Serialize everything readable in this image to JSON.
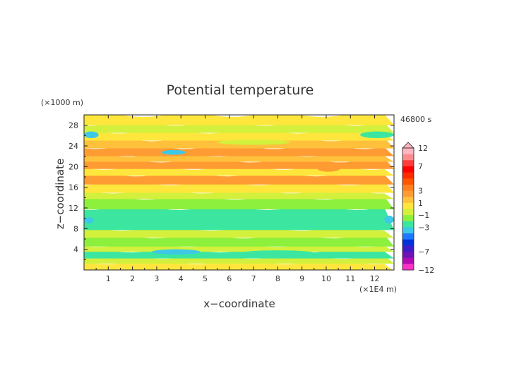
{
  "chart_data": {
    "type": "heatmap",
    "title": "Potential temperature",
    "xlabel": "x−coordinate",
    "ylabel": "z−coordinate",
    "x_unit": "(×1E4 m)",
    "y_unit": "(×1000 m)",
    "time_label": "46800 s",
    "xlim": [
      0,
      12.8
    ],
    "ylim": [
      0,
      30
    ],
    "x_ticks": [
      1,
      2,
      3,
      4,
      5,
      6,
      7,
      8,
      9,
      10,
      11,
      12
    ],
    "y_ticks": [
      4,
      8,
      12,
      16,
      20,
      24,
      28
    ],
    "colorbar": {
      "labels": [
        "12",
        "7",
        "3",
        "1",
        "−1",
        "−3",
        "−7",
        "−12"
      ],
      "label_values": [
        12,
        7,
        3,
        1,
        -1,
        -3,
        -7,
        -12
      ],
      "levels": [
        12,
        10,
        8,
        7,
        6,
        5,
        4,
        3,
        2,
        1,
        0,
        -1,
        -2,
        -3,
        -4,
        -5,
        -6,
        -7,
        -9,
        -12
      ],
      "colors": [
        "#ffb6c1",
        "#ff8c8c",
        "#ff3c3c",
        "#ff0000",
        "#ff2a00",
        "#ff5500",
        "#ff7f20",
        "#ff9b33",
        "#ffc03c",
        "#ffe63c",
        "#d2f03c",
        "#8cf03c",
        "#3ce6a0",
        "#3cc8e6",
        "#1e78ff",
        "#0032dc",
        "#3c1ec8",
        "#6e14b4",
        "#b40ab4",
        "#ff32c8"
      ]
    },
    "layers": [
      {
        "z": [
          0.0,
          1.5
        ],
        "value": 1.5
      },
      {
        "z": [
          1.5,
          2.5
        ],
        "value": 0.5
      },
      {
        "z": [
          2.5,
          3.8
        ],
        "value": -1.5
      },
      {
        "z": [
          3.8,
          4.8
        ],
        "value": 0.2
      },
      {
        "z": [
          4.8,
          6.5
        ],
        "value": -0.5
      },
      {
        "z": [
          6.5,
          8.0
        ],
        "value": 0.3
      },
      {
        "z": [
          8.0,
          12.0
        ],
        "value": -1.5
      },
      {
        "z": [
          12.0,
          14.0
        ],
        "value": -0.4
      },
      {
        "z": [
          14.0,
          15.2
        ],
        "value": 0.4
      },
      {
        "z": [
          15.2,
          16.8
        ],
        "value": 1.5
      },
      {
        "z": [
          16.8,
          18.5
        ],
        "value": 3.0
      },
      {
        "z": [
          18.5,
          19.8
        ],
        "value": 1.5
      },
      {
        "z": [
          19.8,
          21.2
        ],
        "value": 3.3
      },
      {
        "z": [
          21.2,
          22.3
        ],
        "value": 2.0
      },
      {
        "z": [
          22.3,
          23.8
        ],
        "value": 3.6
      },
      {
        "z": [
          23.8,
          25.3
        ],
        "value": 2.2
      },
      {
        "z": [
          25.3,
          26.8
        ],
        "value": 1.5
      },
      {
        "z": [
          26.8,
          28.3
        ],
        "value": 0.5
      },
      {
        "z": [
          28.3,
          30.0
        ],
        "value": 1.5
      }
    ],
    "features": [
      {
        "x": [
          0.0,
          0.6
        ],
        "z": [
          25.5,
          26.8
        ],
        "value": -2.5
      },
      {
        "x": [
          11.4,
          12.8
        ],
        "z": [
          25.5,
          26.8
        ],
        "value": -2.0
      },
      {
        "x": [
          3.2,
          4.2
        ],
        "z": [
          22.3,
          23.2
        ],
        "value": -3.0
      },
      {
        "x": [
          5.5,
          8.5
        ],
        "z": [
          24.2,
          25.2
        ],
        "value": 0.8
      },
      {
        "x": [
          9.6,
          10.6
        ],
        "z": [
          19.0,
          20.5
        ],
        "value": 3.0
      },
      {
        "x": [
          0.0,
          0.4
        ],
        "z": [
          9.0,
          10.2
        ],
        "value": -2.8
      },
      {
        "x": [
          12.4,
          12.8
        ],
        "z": [
          9.0,
          10.5
        ],
        "value": -2.8
      },
      {
        "x": [
          5.5,
          8.0
        ],
        "z": [
          10.0,
          10.8
        ],
        "value": -2.0
      },
      {
        "x": [
          2.8,
          4.8
        ],
        "z": [
          3.0,
          4.0
        ],
        "value": -2.2
      },
      {
        "x": [
          6.5,
          9.5
        ],
        "z": [
          2.8,
          3.8
        ],
        "value": -1.8
      }
    ]
  }
}
